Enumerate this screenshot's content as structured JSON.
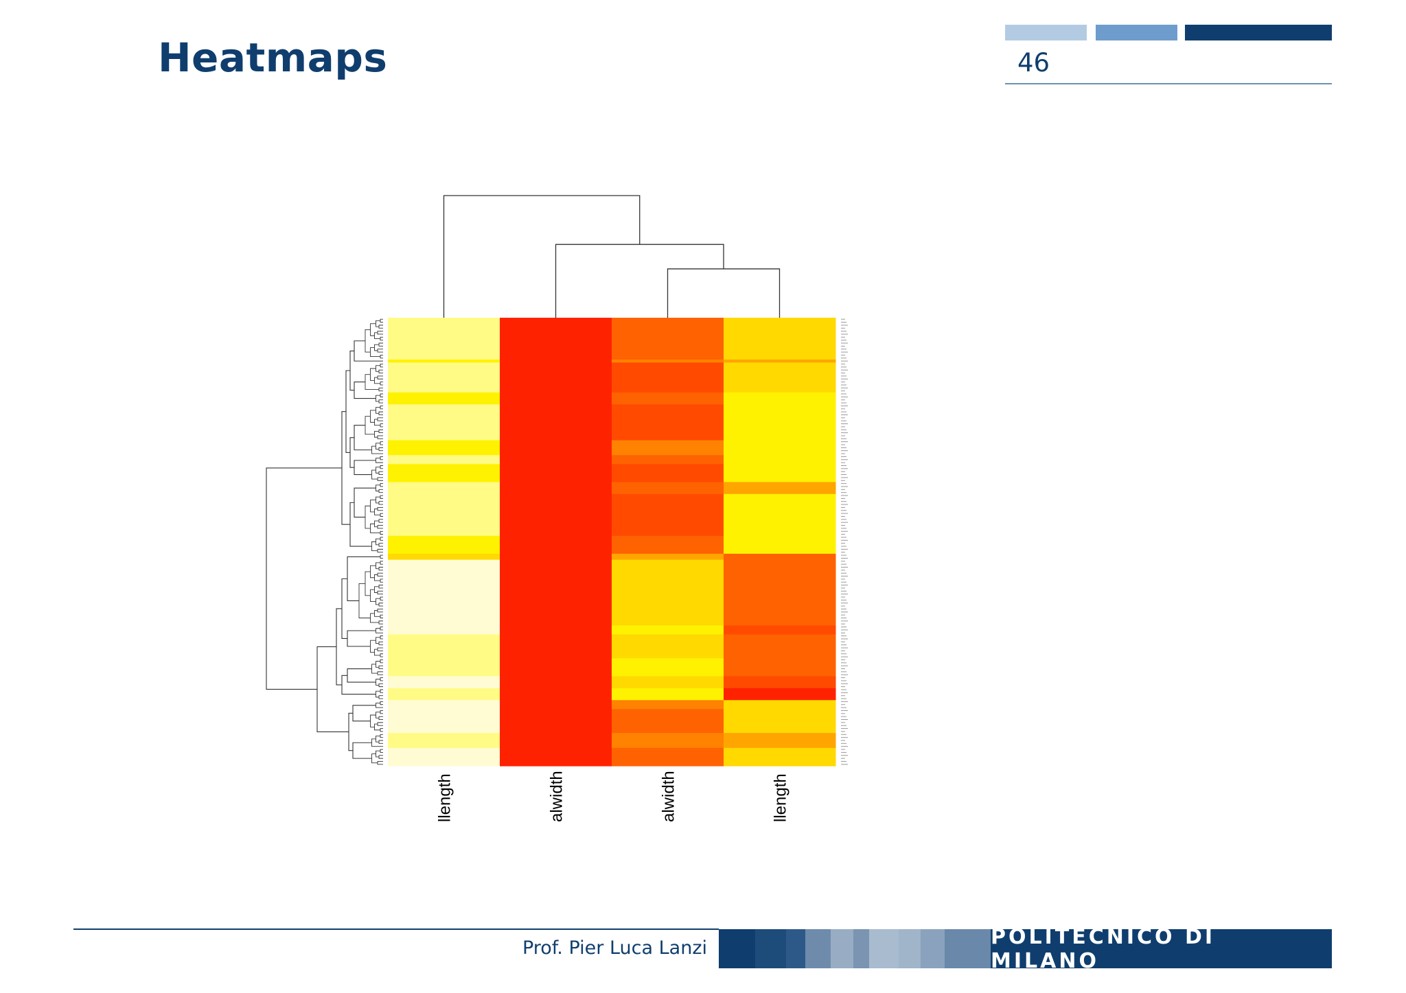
{
  "slide": {
    "title": "Heatmaps",
    "page_number": "46",
    "footer_author": "Prof. Pier Luca Lanzi",
    "footer_brand": "POLITECNICO DI MILANO"
  },
  "colors": {
    "title": "#0f3e6e",
    "header_bars": [
      "#b3cbe2",
      "#6e9ccd",
      "#0f3e6e"
    ],
    "footer_tiles": [
      "#0f3e6e",
      "#1d4b7a",
      "#2d5988",
      "#6e8bab",
      "#98adc4",
      "#7a94b1",
      "#a8bbcf",
      "#a0b4ca",
      "#8aa2bd",
      "#6a88a9"
    ],
    "footer_brand_bg": "#0f3e6e",
    "heat_palette": [
      "#ff2200",
      "#ff4a00",
      "#ff6200",
      "#ff8200",
      "#ffa500",
      "#ffd900",
      "#fff200",
      "#fffb85",
      "#fffcd4"
    ]
  },
  "chart_data": {
    "type": "heatmap",
    "title": "",
    "xlabel": "",
    "ylabel": "",
    "columns": [
      "llength",
      "alwidth",
      "alwidth",
      "llength"
    ],
    "color_scale": "heat (red = low, light yellow = high)",
    "column_dendrogram": {
      "merges": [
        {
          "left": 3,
          "right": 4,
          "height": 0.4
        },
        {
          "left": 2,
          "right": "m1",
          "height": 0.6
        },
        {
          "left": 1,
          "right": "m2",
          "height": 1.0
        }
      ]
    },
    "row_dendrogram": "present (150 rows, hierarchically clustered)",
    "row_blocks": [
      {
        "rows": 14,
        "values": [
          7,
          0,
          2,
          5
        ]
      },
      {
        "rows": 1,
        "values": [
          6,
          0,
          3,
          4
        ]
      },
      {
        "rows": 10,
        "values": [
          7,
          0,
          1,
          5
        ]
      },
      {
        "rows": 4,
        "values": [
          6,
          0,
          2,
          6
        ]
      },
      {
        "rows": 12,
        "values": [
          7,
          0,
          1,
          6
        ]
      },
      {
        "rows": 5,
        "values": [
          6,
          0,
          3,
          6
        ]
      },
      {
        "rows": 3,
        "values": [
          7,
          0,
          2,
          6
        ]
      },
      {
        "rows": 6,
        "values": [
          6,
          0,
          1,
          6
        ]
      },
      {
        "rows": 4,
        "values": [
          7,
          0,
          2,
          4
        ]
      },
      {
        "rows": 14,
        "values": [
          7,
          0,
          1,
          6
        ]
      },
      {
        "rows": 6,
        "values": [
          6,
          0,
          2,
          6
        ]
      },
      {
        "rows": 2,
        "values": [
          5,
          0,
          4,
          2
        ]
      },
      {
        "rows": 22,
        "values": [
          8,
          0,
          5,
          2
        ]
      },
      {
        "rows": 3,
        "values": [
          8,
          0,
          6,
          1
        ]
      },
      {
        "rows": 8,
        "values": [
          7,
          0,
          5,
          2
        ]
      },
      {
        "rows": 6,
        "values": [
          7,
          0,
          6,
          2
        ]
      },
      {
        "rows": 4,
        "values": [
          8,
          0,
          5,
          1
        ]
      },
      {
        "rows": 4,
        "values": [
          7,
          0,
          6,
          0
        ]
      },
      {
        "rows": 3,
        "values": [
          8,
          0,
          3,
          5
        ]
      },
      {
        "rows": 8,
        "values": [
          8,
          0,
          2,
          5
        ]
      },
      {
        "rows": 5,
        "values": [
          7,
          0,
          3,
          4
        ]
      },
      {
        "rows": 6,
        "values": [
          8,
          0,
          2,
          5
        ]
      }
    ]
  }
}
